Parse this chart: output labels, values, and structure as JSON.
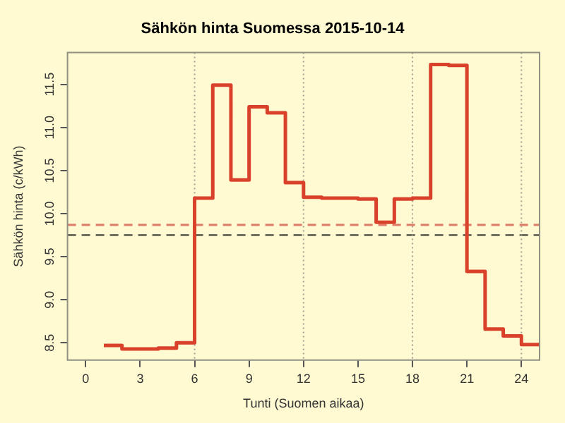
{
  "chart_data": {
    "type": "step",
    "title": "Sähkön hinta Suomessa 2015-10-14",
    "xlabel": "Tunti (Suomen aikaa)",
    "ylabel": "Sähkön hinta (c/kWh)",
    "x": [
      1,
      2,
      3,
      4,
      5,
      6,
      7,
      8,
      9,
      10,
      11,
      12,
      13,
      14,
      15,
      16,
      17,
      18,
      19,
      20,
      21,
      22,
      23,
      24,
      25
    ],
    "series": [
      {
        "color": "#d9412b",
        "values": [
          8.47,
          8.43,
          8.43,
          8.44,
          8.5,
          10.18,
          11.49,
          10.39,
          11.24,
          11.17,
          10.36,
          10.19,
          10.18,
          10.18,
          10.17,
          9.9,
          10.17,
          10.18,
          11.73,
          11.72,
          9.33,
          8.66,
          8.58,
          8.48,
          8.48
        ]
      }
    ],
    "xlim": [
      -1,
      25
    ],
    "xticks": [
      0,
      3,
      6,
      9,
      12,
      15,
      18,
      21,
      24
    ],
    "ylim": [
      8.3,
      11.87
    ],
    "yticks": [
      8.5,
      {
        "value": 9,
        "label": "9.0"
      },
      9.5,
      {
        "value": 10,
        "label": "10.0"
      },
      10.5,
      {
        "value": 11,
        "label": "11.0"
      },
      11.5
    ],
    "ref_lines": [
      {
        "axis": "y",
        "value": 9.87,
        "color": "#e07a68",
        "line_style": "dashed"
      },
      {
        "axis": "y",
        "value": 9.75,
        "color": "#707060",
        "line_style": "dashed"
      },
      {
        "axis": "x",
        "value": 6,
        "color": "#a0a090",
        "line_style": "dotted"
      },
      {
        "axis": "x",
        "value": 12,
        "color": "#a0a090",
        "line_style": "dotted"
      },
      {
        "axis": "x",
        "value": 18,
        "color": "#a0a090",
        "line_style": "dotted"
      },
      {
        "axis": "x",
        "value": 24,
        "color": "#a0a090",
        "line_style": "dotted"
      }
    ],
    "grid": false,
    "legend": false,
    "line_style": "solid",
    "marker": "none"
  }
}
